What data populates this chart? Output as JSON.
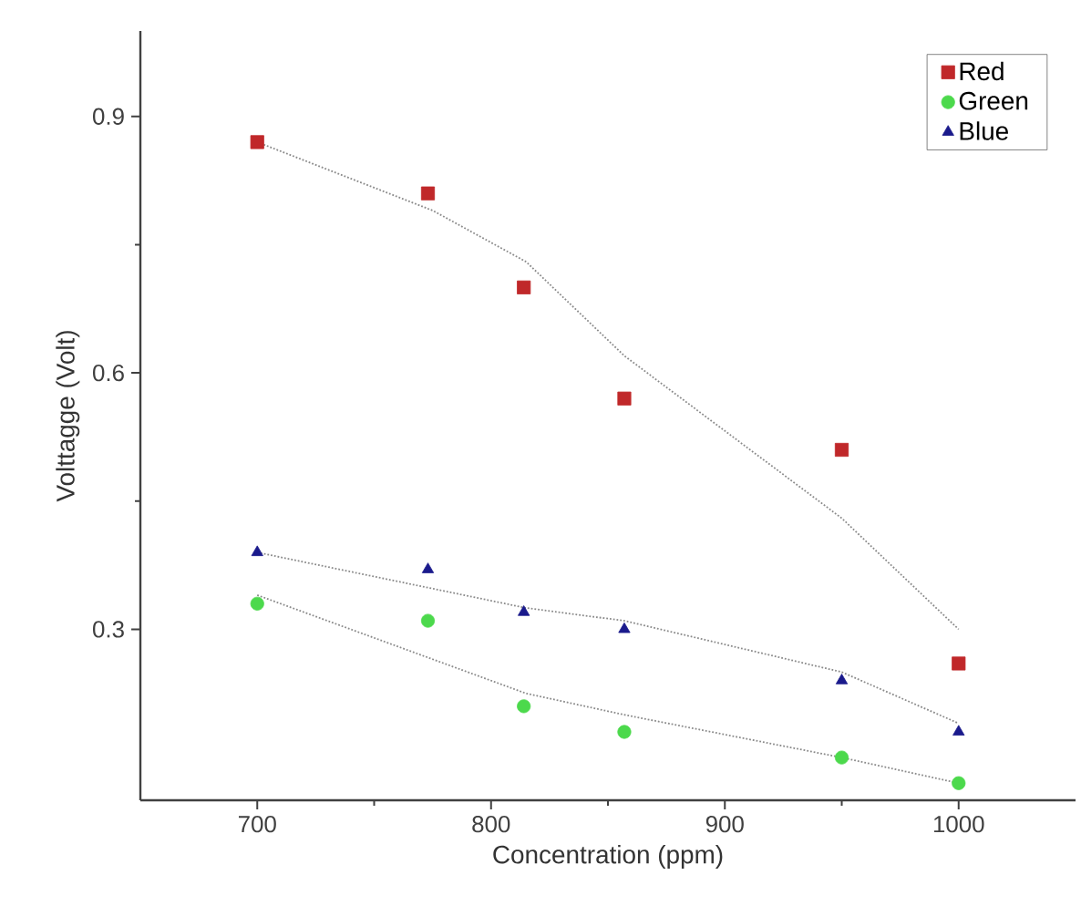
{
  "chart_data": {
    "type": "scatter",
    "xlabel": "Concentration (ppm)",
    "ylabel": "Volttagge (Volt)",
    "xlim": [
      650,
      1050
    ],
    "ylim": [
      0.1,
      1.0
    ],
    "xticks": [
      700,
      800,
      900,
      1000
    ],
    "yticks": [
      0.3,
      0.6,
      0.9
    ],
    "legend": "top right",
    "grid": false,
    "series": [
      {
        "name": "Red",
        "marker": "square",
        "color": "#c0282a",
        "x": [
          700,
          773,
          814,
          857,
          950,
          1000
        ],
        "values": [
          0.87,
          0.81,
          0.7,
          0.57,
          0.51,
          0.26
        ]
      },
      {
        "name": "Green",
        "marker": "circle",
        "color": "#4cd94c",
        "x": [
          700,
          773,
          814,
          857,
          950,
          1000
        ],
        "values": [
          0.33,
          0.31,
          0.21,
          0.18,
          0.15,
          0.12
        ]
      },
      {
        "name": "Blue",
        "marker": "triangle",
        "color": "#1a1a8c",
        "x": [
          700,
          773,
          814,
          857,
          950,
          1000
        ],
        "values": [
          0.39,
          0.37,
          0.32,
          0.3,
          0.24,
          0.18
        ]
      },
      {
        "type": "line",
        "marker": "none",
        "line_style": "dotted",
        "color": "#8a8a8a",
        "x": [
          700,
          775,
          815,
          857,
          950,
          1000
        ],
        "values": [
          0.87,
          0.79,
          0.73,
          0.62,
          0.43,
          0.3
        ]
      },
      {
        "type": "line",
        "marker": "none",
        "line_style": "dotted",
        "color": "#8a8a8a",
        "x": [
          700,
          815,
          857,
          950,
          1000
        ],
        "values": [
          0.34,
          0.225,
          0.2,
          0.15,
          0.12
        ]
      },
      {
        "type": "line",
        "marker": "none",
        "line_style": "dotted",
        "color": "#8a8a8a",
        "x": [
          700,
          815,
          857,
          950,
          1000
        ],
        "values": [
          0.39,
          0.325,
          0.31,
          0.25,
          0.19
        ]
      }
    ]
  }
}
